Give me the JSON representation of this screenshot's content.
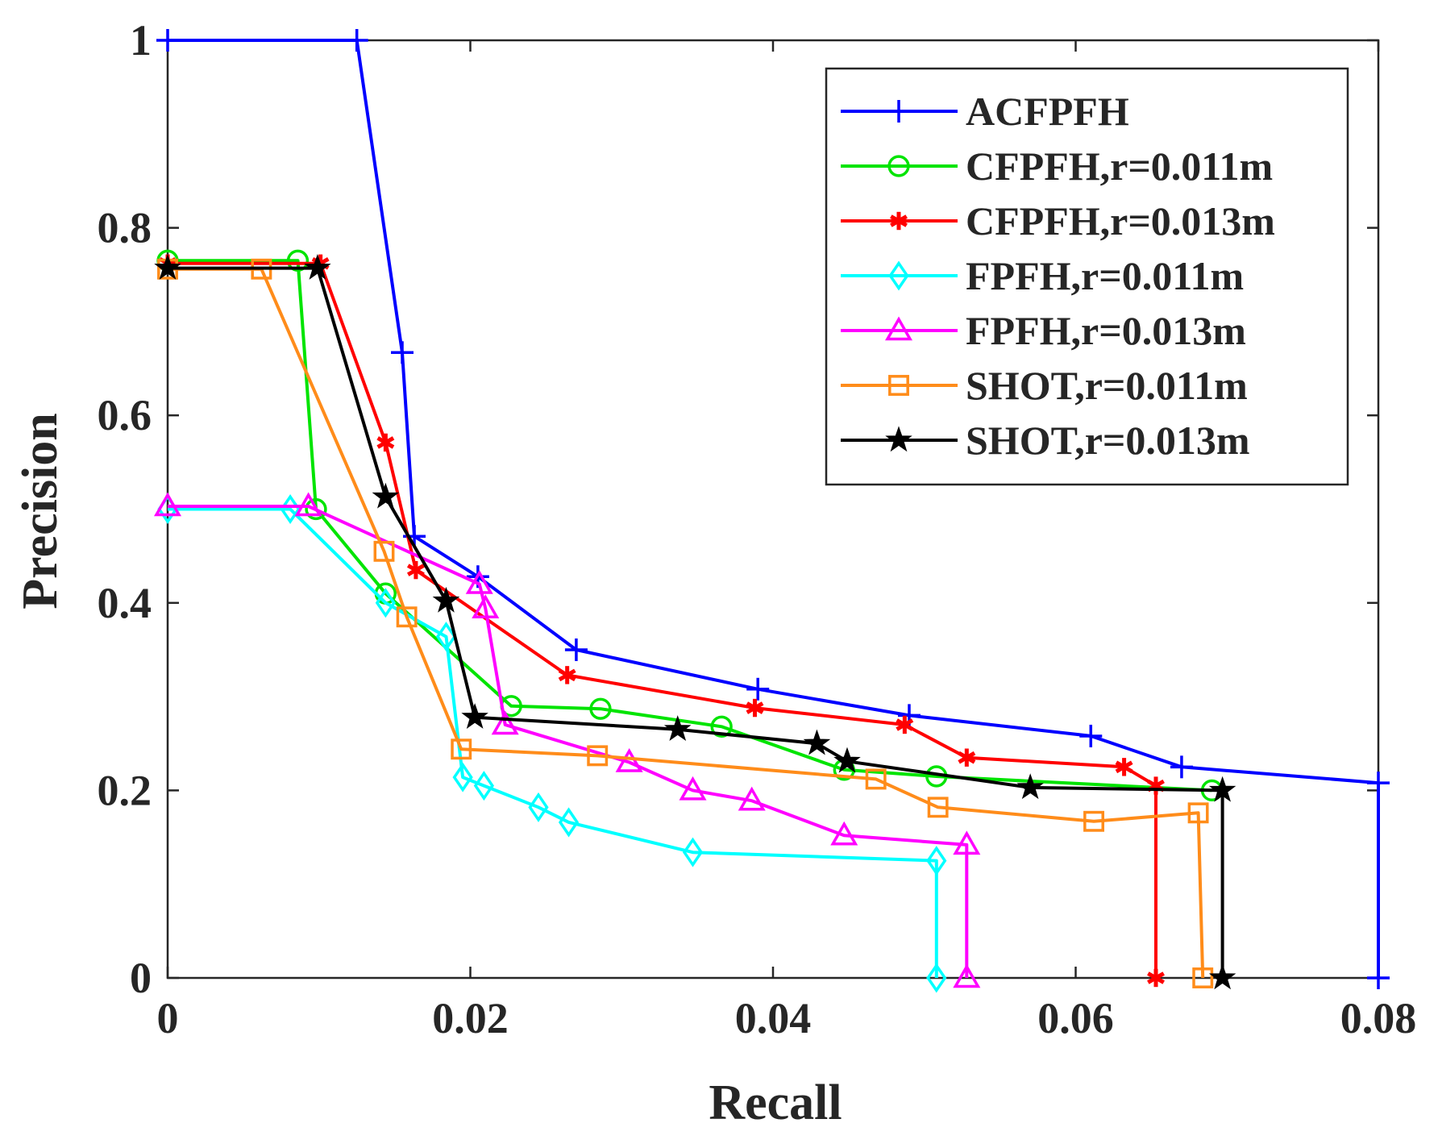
{
  "chart_data": {
    "type": "line",
    "xlabel": "Recall",
    "ylabel": "Precision",
    "xlim": [
      0,
      0.08
    ],
    "ylim": [
      0,
      1
    ],
    "xticks": [
      0,
      0.02,
      0.04,
      0.06,
      0.08
    ],
    "xtick_labels": [
      "0",
      "0.02",
      "0.04",
      "0.06",
      "0.08"
    ],
    "yticks": [
      0,
      0.2,
      0.4,
      0.6,
      0.8,
      1
    ],
    "ytick_labels": [
      "0",
      "0.2",
      "0.4",
      "0.6",
      "0.8",
      "1"
    ],
    "grid": false,
    "legend_position": "top-right",
    "series": [
      {
        "name": "ACFPFH",
        "color": "#0000ff",
        "marker": "plus",
        "x": [
          0,
          0.0125,
          0.0155,
          0.0163,
          0.0205,
          0.027,
          0.039,
          0.049,
          0.061,
          0.067,
          0.08,
          0.08
        ],
        "y": [
          1,
          1,
          0.667,
          0.471,
          0.428,
          0.35,
          0.308,
          0.28,
          0.258,
          0.225,
          0.208,
          0
        ]
      },
      {
        "name": "CFPFH,r=0.011m",
        "color": "#00e400",
        "marker": "circle",
        "x": [
          0,
          0.0086,
          0.0098,
          0.0144,
          0.0227,
          0.0286,
          0.0366,
          0.0447,
          0.0508,
          0.069
        ],
        "y": [
          0.765,
          0.765,
          0.5,
          0.41,
          0.29,
          0.287,
          0.268,
          0.222,
          0.215,
          0.2
        ]
      },
      {
        "name": "CFPFH,r=0.013m",
        "color": "#ff0000",
        "marker": "asterisk",
        "x": [
          0,
          0.0101,
          0.0144,
          0.0164,
          0.0264,
          0.0388,
          0.0487,
          0.0528,
          0.0632,
          0.0653,
          0.0653
        ],
        "y": [
          0.762,
          0.762,
          0.571,
          0.435,
          0.323,
          0.288,
          0.27,
          0.235,
          0.225,
          0.205,
          0
        ]
      },
      {
        "name": "FPFH,r=0.011m",
        "color": "#00ffff",
        "marker": "diamond",
        "x": [
          0,
          0.0081,
          0.0144,
          0.0184,
          0.0195,
          0.0209,
          0.0245,
          0.0265,
          0.0347,
          0.0508,
          0.0508
        ],
        "y": [
          0.5,
          0.5,
          0.4,
          0.364,
          0.214,
          0.205,
          0.182,
          0.166,
          0.134,
          0.125,
          0
        ]
      },
      {
        "name": "FPFH,r=0.013m",
        "color": "#ff00ff",
        "marker": "triangle",
        "x": [
          0,
          0.0093,
          0.0206,
          0.021,
          0.0223,
          0.0305,
          0.0347,
          0.0386,
          0.0447,
          0.0528,
          0.0528
        ],
        "y": [
          0.503,
          0.503,
          0.42,
          0.394,
          0.27,
          0.23,
          0.2,
          0.189,
          0.152,
          0.142,
          0
        ]
      },
      {
        "name": "SHOT,r=0.011m",
        "color": "#ff8c1a",
        "marker": "square",
        "x": [
          0,
          0.0062,
          0.0143,
          0.0158,
          0.0194,
          0.0284,
          0.0468,
          0.0509,
          0.0612,
          0.0681,
          0.0684
        ],
        "y": [
          0.756,
          0.756,
          0.455,
          0.385,
          0.244,
          0.237,
          0.212,
          0.182,
          0.167,
          0.176,
          0
        ]
      },
      {
        "name": "SHOT,r=0.013m",
        "color": "#000000",
        "marker": "star",
        "x": [
          0,
          0.0099,
          0.0144,
          0.0184,
          0.0203,
          0.0337,
          0.0429,
          0.0449,
          0.057,
          0.0697,
          0.0697
        ],
        "y": [
          0.757,
          0.757,
          0.513,
          0.402,
          0.278,
          0.265,
          0.25,
          0.231,
          0.203,
          0.2,
          0
        ]
      }
    ]
  }
}
